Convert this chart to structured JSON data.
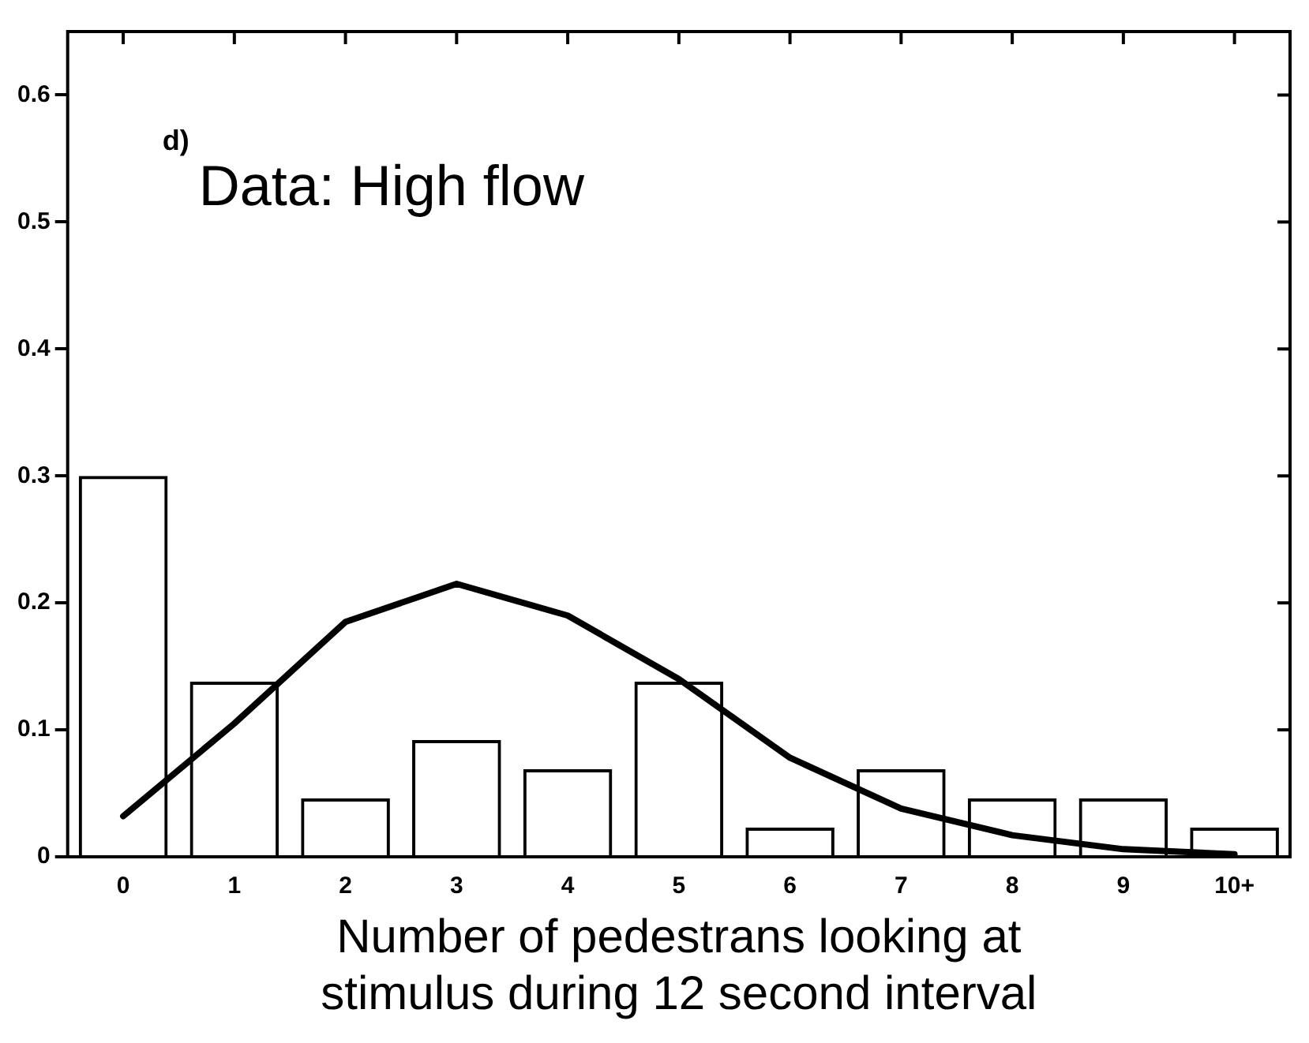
{
  "chart_data": {
    "type": "bar",
    "categories": [
      "0",
      "1",
      "2",
      "3",
      "4",
      "5",
      "6",
      "7",
      "8",
      "9",
      "10+"
    ],
    "series": [
      {
        "color": "#000000",
        "values": [
          0.3,
          0.138,
          0.046,
          0.092,
          0.069,
          0.138,
          0.023,
          0.069,
          0.046,
          0.046,
          0.023
        ]
      },
      {
        "type": "line",
        "color": "#000000",
        "values": [
          0.032,
          0.105,
          0.185,
          0.215,
          0.19,
          0.14,
          0.078,
          0.038,
          0.017,
          0.006,
          0.002
        ]
      }
    ],
    "xlabel": "Number of pedestrans looking at stimulus during 12 second interval",
    "annotations": [
      "d)",
      "Data: High flow"
    ],
    "ylim": [
      0,
      0.65
    ],
    "yticks": [
      0,
      0.1,
      0.2,
      0.3,
      0.4,
      0.5,
      0.6
    ],
    "grid": false,
    "legend": false,
    "marker": "none",
    "line_style": "solid"
  }
}
